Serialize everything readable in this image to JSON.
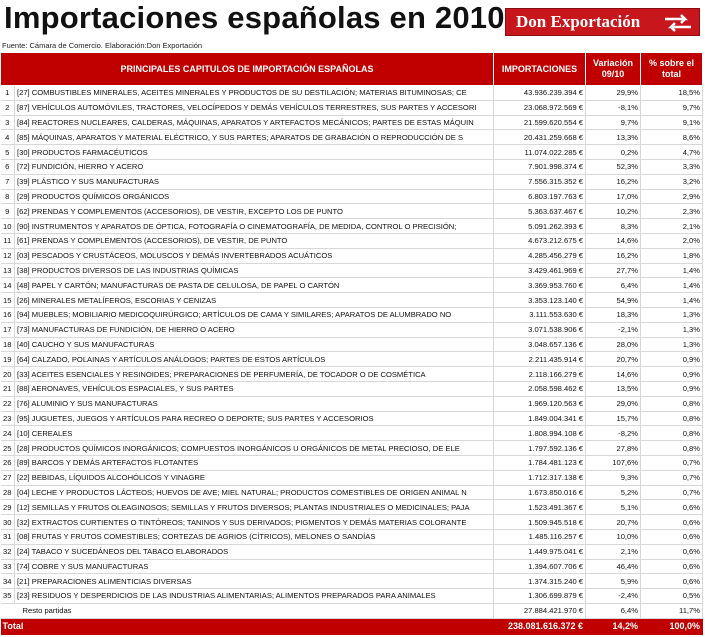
{
  "header": {
    "title": "Importaciones españolas en 2010",
    "logo": "Don Exportación",
    "source": "Fuente: Cámara de Comercio. Elaboración:Don Exportación"
  },
  "table": {
    "columns": [
      "PRINCIPALES CAPITULOS DE IMPORTACIÓN ESPAÑOLAS",
      "IMPORTACIONES",
      "Variación 09/10",
      "% sobre el total"
    ],
    "rows": [
      [
        "1",
        "[27] COMBUSTIBLES MINERALES, ACEITES MINERALES Y PRODUCTOS DE SU DESTILACIÓN; MATERIAS BITUMINOSAS; CE",
        "43.936.239.394 €",
        "29,9%",
        "18,5%"
      ],
      [
        "2",
        "[87] VEHÍCULOS AUTOMÓVILES, TRACTORES, VELOCÍPEDOS Y DEMÁS VEHÍCULOS TERRESTRES, SUS PARTES Y ACCESORI",
        "23.068.972.569 €",
        "-8,1%",
        "9,7%"
      ],
      [
        "3",
        "[84] REACTORES NUCLEARES, CALDERAS, MÁQUINAS, APARATOS Y ARTEFACTOS MECÁNICOS; PARTES DE ESTAS MÁQUIN",
        "21.599.620.554 €",
        "9,7%",
        "9,1%"
      ],
      [
        "4",
        "[85] MÁQUINAS, APARATOS Y MATERIAL ELÉCTRICO, Y SUS PARTES; APARATOS DE GRABACIÓN O REPRODUCCIÓN DE S",
        "20.431.259.668 €",
        "13,3%",
        "8,6%"
      ],
      [
        "5",
        "[30] PRODUCTOS FARMACÉUTICOS",
        "11.074.022.285 €",
        "0,2%",
        "4,7%"
      ],
      [
        "6",
        "[72] FUNDICIÓN, HIERRO Y ACERO",
        "7.901.998.374 €",
        "52,3%",
        "3,3%"
      ],
      [
        "7",
        "[39] PLÁSTICO Y SUS MANUFACTURAS",
        "7.556.315.352 €",
        "16,2%",
        "3,2%"
      ],
      [
        "8",
        "[29] PRODUCTOS QUÍMICOS ORGÁNICOS",
        "6.803.197.763 €",
        "17,0%",
        "2,9%"
      ],
      [
        "9",
        "[62] PRENDAS Y COMPLEMENTOS (ACCESORIOS), DE VESTIR, EXCEPTO LOS DE PUNTO",
        "5.363.637.467 €",
        "10,2%",
        "2,3%"
      ],
      [
        "10",
        "[90] INSTRUMENTOS Y APARATOS DE ÓPTICA, FOTOGRAFÍA O CINEMATOGRAFÍA, DE MEDIDA, CONTROL O PRECISIÓN;",
        "5.091.262.393 €",
        "8,3%",
        "2,1%"
      ],
      [
        "11",
        "[61] PRENDAS Y COMPLEMENTOS (ACCESORIOS), DE VESTIR, DE PUNTO",
        "4.673.212.675 €",
        "14,6%",
        "2,0%"
      ],
      [
        "12",
        "[03] PESCADOS Y CRUSTÁCEOS, MOLUSCOS Y DEMÁS INVERTEBRADOS ACUÁTICOS",
        "4.285.456.279 €",
        "16,2%",
        "1,8%"
      ],
      [
        "13",
        "[38] PRODUCTOS DIVERSOS DE LAS INDUSTRIAS QUÍMICAS",
        "3.429.461.969 €",
        "27,7%",
        "1,4%"
      ],
      [
        "14",
        "[48] PAPEL Y CARTÓN; MANUFACTURAS DE PASTA DE CELULOSA, DE PAPEL O CARTÓN",
        "3.369.953.760 €",
        "6,4%",
        "1,4%"
      ],
      [
        "15",
        "[26] MINERALES METALÍFEROS, ESCORIAS Y CENIZAS",
        "3.353.123.140 €",
        "54,9%",
        "1,4%"
      ],
      [
        "16",
        "[94] MUEBLES; MOBILIARIO MEDICOQUIRÚRGICO; ARTÍCULOS DE CAMA Y SIMILARES; APARATOS DE ALUMBRADO NO",
        "3.111.553.630 €",
        "18,3%",
        "1,3%"
      ],
      [
        "17",
        "[73] MANUFACTURAS DE FUNDICIÓN, DE HIERRO O ACERO",
        "3.071.538.906 €",
        "-2,1%",
        "1,3%"
      ],
      [
        "18",
        "[40] CAUCHO Y SUS MANUFACTURAS",
        "3.048.657.136 €",
        "28,0%",
        "1,3%"
      ],
      [
        "19",
        "[64] CALZADO, POLAINAS Y ARTÍCULOS ANÁLOGOS; PARTES DE ESTOS ARTÍCULOS",
        "2.211.435.914 €",
        "20,7%",
        "0,9%"
      ],
      [
        "20",
        "[33] ACEITES ESENCIALES Y RESINOIDES; PREPARACIONES DE PERFUMERÍA, DE TOCADOR O DE COSMÉTICA",
        "2.118.166.279 €",
        "14,6%",
        "0,9%"
      ],
      [
        "21",
        "[88] AERONAVES, VEHÍCULOS ESPACIALES, Y SUS PARTES",
        "2.058.598.462 €",
        "13,5%",
        "0,9%"
      ],
      [
        "22",
        "[76] ALUMINIO Y SUS MANUFACTURAS",
        "1.969.120.563 €",
        "29,0%",
        "0,8%"
      ],
      [
        "23",
        "[95] JUGUETES, JUEGOS Y ARTÍCULOS PARA RECREO O DEPORTE; SUS PARTES Y ACCESORIOS",
        "1.849.004.341 €",
        "15,7%",
        "0,8%"
      ],
      [
        "24",
        "[10] CEREALES",
        "1.808.994.108 €",
        "-8,2%",
        "0,8%"
      ],
      [
        "25",
        "[28] PRODUCTOS QUÍMICOS INORGÁNICOS; COMPUESTOS INORGÁNICOS U ORGÁNICOS DE METAL PRECIOSO, DE ELE",
        "1.797.592.136 €",
        "27,8%",
        "0,8%"
      ],
      [
        "26",
        "[89] BARCOS Y DEMÁS ARTEFACTOS FLOTANTES",
        "1.784.481.123 €",
        "107,6%",
        "0,7%"
      ],
      [
        "27",
        "[22] BEBIDAS, LÍQUIDOS ALCOHÓLICOS Y VINAGRE",
        "1.712.317.138 €",
        "9,3%",
        "0,7%"
      ],
      [
        "28",
        "[04] LECHE Y PRODUCTOS LÁCTEOS; HUEVOS DE AVE; MIEL NATURAL; PRODUCTOS COMESTIBLES DE ORIGEN ANIMAL N",
        "1.673.850.016 €",
        "5,2%",
        "0,7%"
      ],
      [
        "29",
        "[12] SEMILLAS Y FRUTOS OLEAGINOSOS; SEMILLAS Y FRUTOS DIVERSOS; PLANTAS INDUSTRIALES O MEDICINALES; PAJA",
        "1.523.491.367 €",
        "5,1%",
        "0,6%"
      ],
      [
        "30",
        "[32] EXTRACTOS CURTIENTES O TINTÓREOS; TANINOS Y SUS DERIVADOS; PIGMENTOS Y DEMÁS MATERIAS COLORANTE",
        "1.509.945.518 €",
        "20,7%",
        "0,6%"
      ],
      [
        "31",
        "[08] FRUTAS Y FRUTOS COMESTIBLES; CORTEZAS DE AGRIOS (CÍTRICOS), MELONES O SANDÍAS",
        "1.485.116.257 €",
        "10,0%",
        "0,6%"
      ],
      [
        "32",
        "[24] TABACO Y SUCEDÁNEOS DEL TABACO ELABORADOS",
        "1.449.975.041 €",
        "2,1%",
        "0,6%"
      ],
      [
        "33",
        "[74] COBRE Y SUS MANUFACTURAS",
        "1.394.607.706 €",
        "46,4%",
        "0,6%"
      ],
      [
        "34",
        "[21] PREPARACIONES ALIMENTICIAS DIVERSAS",
        "1.374.315.240 €",
        "5,9%",
        "0,6%"
      ],
      [
        "35",
        "[23] RESIDUOS Y DESPERDICIOS DE LAS INDUSTRIAS ALIMENTARIAS; ALIMENTOS PREPARADOS PARA ANIMALES",
        "1.306.699.879 €",
        "-2,4%",
        "0,5%"
      ]
    ],
    "resto": [
      "Resto partidas",
      "27.884.421.970 €",
      "6,4%",
      "11,7%"
    ],
    "total": [
      "Total",
      "238.081.616.372 €",
      "14,2%",
      "100,0%"
    ]
  }
}
